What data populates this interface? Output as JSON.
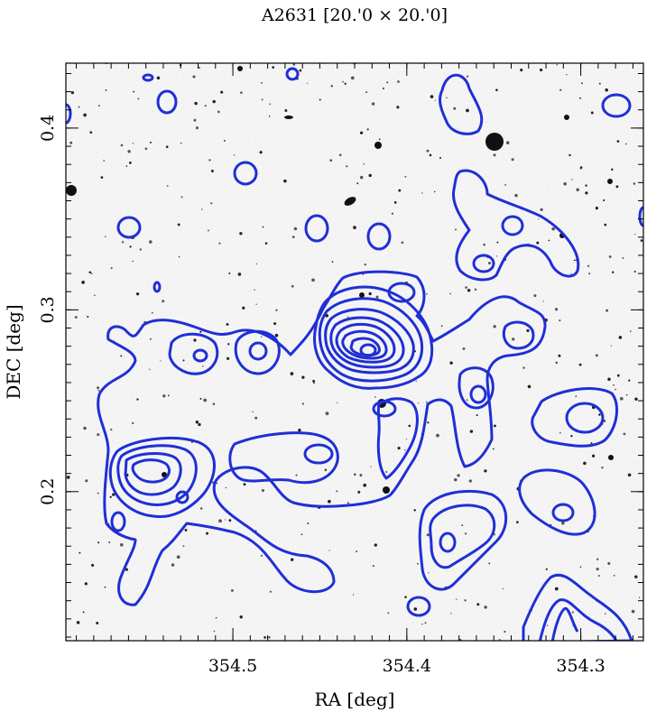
{
  "chart_data": {
    "type": "contour",
    "title": "A2631  [20.'0 × 20.'0]",
    "xlabel": "RA [deg]",
    "ylabel": "DEC [deg]",
    "x_reversed": true,
    "xlim": [
      354.596,
      354.264
    ],
    "ylim": [
      0.118,
      0.4357
    ],
    "x_ticks": [
      354.5,
      354.4,
      354.3
    ],
    "x_tick_labels": [
      "354.5",
      "354.4",
      "354.3"
    ],
    "y_ticks": [
      0.2,
      0.3,
      0.4
    ],
    "y_tick_labels": [
      "0.2",
      "0.3",
      "0.4"
    ],
    "x_minor_step": 0.01,
    "y_minor_step": 0.01,
    "background": "grayscale optical sky image (inverted)",
    "contour_color": "#1f2fd6",
    "grid": false,
    "peaks": [
      {
        "name": "main-peak",
        "ra": 354.415,
        "dec": 0.272,
        "levels": 8
      },
      {
        "name": "peak-west-1",
        "ra": 354.519,
        "dec": 0.268,
        "levels": 2
      },
      {
        "name": "peak-west-2",
        "ra": 354.477,
        "dec": 0.271,
        "levels": 2
      },
      {
        "name": "peak-sw-1",
        "ra": 354.537,
        "dec": 0.205,
        "levels": 4
      },
      {
        "name": "peak-south-1",
        "ra": 354.335,
        "dec": 0.176,
        "levels": 2
      },
      {
        "name": "peak-se-1",
        "ra": 354.396,
        "dec": 0.16,
        "levels": 3
      },
      {
        "name": "peak-east-1",
        "ra": 354.301,
        "dec": 0.238,
        "levels": 2
      },
      {
        "name": "peak-ne-1",
        "ra": 354.361,
        "dec": 0.313,
        "levels": 2
      },
      {
        "name": "peak-ne-2",
        "ra": 354.319,
        "dec": 0.337,
        "levels": 2
      }
    ]
  }
}
